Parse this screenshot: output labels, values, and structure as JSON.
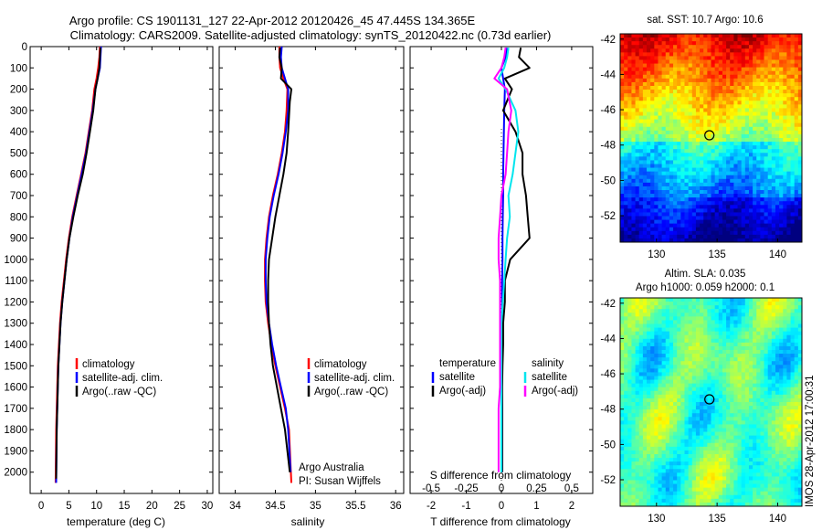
{
  "header": {
    "title_line1": "Argo profile: CS 1901131_127 22-Apr-2012 20120426_45 47.445S 134.365E",
    "title_line2": "Climatology: CARS2009. Satellite-adjusted climatology: synTS_20120422.nc (0.73d earlier)"
  },
  "colors": {
    "climatology": "#ff0000",
    "satellite": "#0000ff",
    "argo": "#000000",
    "sal_satellite": "#00e5ee",
    "sal_argo": "#ff00ff"
  },
  "chart_data": [
    {
      "type": "line",
      "id": "temperature",
      "xlabel": "temperature (deg C)",
      "ylabel": "",
      "xlim": [
        -2,
        31
      ],
      "ylim": [
        2100,
        0
      ],
      "xticks": [
        "0",
        "5",
        "10",
        "15",
        "20",
        "25",
        "30"
      ],
      "yticks": [
        "0",
        "100",
        "200",
        "300",
        "400",
        "500",
        "600",
        "700",
        "800",
        "900",
        "1000",
        "1100",
        "1200",
        "1300",
        "1400",
        "1500",
        "1600",
        "1700",
        "1800",
        "1900",
        "2000"
      ],
      "legend": [
        "climatology",
        "satellite-adj. clim.",
        "Argo(..raw -QC)"
      ],
      "series": [
        {
          "name": "climatology",
          "color": "#ff0000",
          "x": [
            10.6,
            10.5,
            10.3,
            10.0,
            9.6,
            9.2,
            8.6,
            8.0,
            7.2,
            6.4,
            5.6,
            5.0,
            4.5,
            4.1,
            3.7,
            3.4,
            3.2,
            3.0,
            2.9,
            2.8,
            2.7,
            2.6
          ],
          "y": [
            0,
            50,
            100,
            150,
            200,
            300,
            400,
            500,
            600,
            700,
            800,
            900,
            1000,
            1100,
            1200,
            1300,
            1400,
            1500,
            1600,
            1700,
            1800,
            2050
          ]
        },
        {
          "name": "satellite-adj. clim.",
          "color": "#0000ff",
          "x": [
            10.8,
            10.7,
            10.6,
            10.2,
            9.8,
            9.3,
            8.7,
            8.1,
            7.3,
            6.5,
            5.7,
            5.1,
            4.6,
            4.2,
            3.8,
            3.5,
            3.3,
            3.1,
            3.0,
            2.9,
            2.8,
            2.7
          ],
          "y": [
            0,
            50,
            100,
            150,
            200,
            300,
            400,
            500,
            600,
            700,
            800,
            900,
            1000,
            1100,
            1200,
            1300,
            1400,
            1500,
            1600,
            1700,
            1800,
            2050
          ]
        },
        {
          "name": "Argo(..raw -QC)",
          "color": "#000000",
          "x": [
            10.7,
            10.6,
            10.5,
            10.2,
            9.8,
            9.4,
            8.8,
            8.2,
            7.5,
            6.6,
            5.8,
            5.1,
            4.6,
            4.2,
            3.8,
            3.5,
            3.3,
            3.1,
            3.0,
            2.9,
            2.8,
            2.7
          ],
          "y": [
            5,
            50,
            100,
            150,
            200,
            300,
            400,
            500,
            600,
            700,
            800,
            900,
            1000,
            1100,
            1200,
            1300,
            1400,
            1500,
            1600,
            1700,
            1800,
            2030
          ]
        }
      ]
    },
    {
      "type": "line",
      "id": "salinity",
      "xlabel": "salinity",
      "ylabel": "",
      "xlim": [
        33.8,
        36.1
      ],
      "ylim": [
        2100,
        0
      ],
      "xticks": [
        "34",
        "34.5",
        "35",
        "35.5",
        "36"
      ],
      "legend": [
        "climatology",
        "satellite-adj. clim.",
        "Argo(..raw -QC)"
      ],
      "annotation": [
        "Argo Australia",
        "PI: Susan Wijffels"
      ],
      "series": [
        {
          "name": "climatology",
          "color": "#ff0000",
          "x": [
            34.55,
            34.55,
            34.56,
            34.6,
            34.65,
            34.64,
            34.62,
            34.58,
            34.53,
            34.47,
            34.42,
            34.39,
            34.37,
            34.37,
            34.38,
            34.41,
            34.45,
            34.5,
            34.56,
            34.62,
            34.67,
            34.7
          ],
          "y": [
            0,
            50,
            100,
            150,
            200,
            300,
            400,
            500,
            600,
            700,
            800,
            900,
            1000,
            1100,
            1200,
            1300,
            1400,
            1500,
            1600,
            1700,
            1800,
            2050
          ]
        },
        {
          "name": "satellite-adj. clim.",
          "color": "#0000ff",
          "x": [
            34.58,
            34.57,
            34.58,
            34.62,
            34.66,
            34.66,
            34.63,
            34.59,
            34.54,
            34.48,
            34.43,
            34.4,
            34.38,
            34.38,
            34.39,
            34.42,
            34.46,
            34.51,
            34.57,
            34.63,
            34.66,
            34.69
          ],
          "y": [
            0,
            50,
            100,
            150,
            200,
            300,
            400,
            500,
            600,
            700,
            800,
            900,
            1000,
            1100,
            1200,
            1300,
            1400,
            1500,
            1600,
            1700,
            1800,
            2000
          ]
        },
        {
          "name": "Argo(..raw -QC)",
          "color": "#000000",
          "x": [
            34.56,
            34.55,
            34.58,
            34.57,
            34.7,
            34.68,
            34.66,
            34.64,
            34.6,
            34.55,
            34.5,
            34.46,
            34.42,
            34.41,
            34.41,
            34.42,
            34.44,
            34.47,
            34.52,
            34.57,
            34.62,
            34.68
          ],
          "y": [
            5,
            50,
            100,
            150,
            200,
            260,
            400,
            500,
            600,
            700,
            800,
            900,
            1000,
            1100,
            1200,
            1300,
            1400,
            1500,
            1600,
            1700,
            1800,
            2000
          ]
        }
      ]
    },
    {
      "type": "line",
      "id": "differences",
      "xlabel": "T difference from climatology",
      "xlabel_top": "S difference from climatology",
      "xlim": [
        -2.6,
        2.6
      ],
      "s_xlim": [
        -0.65,
        0.65
      ],
      "ylim": [
        2100,
        0
      ],
      "xticks": [
        "-2",
        "-1",
        "0",
        "1",
        "2"
      ],
      "s_xticks": [
        "-0.5",
        "-0.25",
        "0",
        "0.25",
        "0.5"
      ],
      "legend_temperature": [
        "temperature",
        "satellite",
        "Argo(-adj)"
      ],
      "legend_salinity": [
        "salinity",
        "satellite",
        "Argo(-adj)"
      ],
      "series": [
        {
          "name": "T satellite",
          "color": "#0000ff",
          "units": "T",
          "x": [
            0.15,
            0.12,
            0.0,
            0.05,
            0.1,
            0.08,
            0.07,
            0.06,
            0.05,
            0.05,
            0.04,
            0.03,
            0.03,
            0.02,
            0.02,
            0.02,
            0.01,
            0.01,
            0.01,
            0.02,
            0.02
          ],
          "y": [
            5,
            50,
            100,
            150,
            200,
            300,
            400,
            500,
            600,
            700,
            800,
            900,
            1000,
            1100,
            1200,
            1300,
            1400,
            1500,
            1600,
            1700,
            2000
          ]
        },
        {
          "name": "T Argo(-adj)",
          "color": "#000000",
          "units": "T",
          "x": [
            0.55,
            0.5,
            0.8,
            0.1,
            0.3,
            0.05,
            0.4,
            0.6,
            0.6,
            0.7,
            0.75,
            0.8,
            0.25,
            0.1,
            0.1,
            0.05,
            0.05,
            0.03,
            0.02,
            0.02,
            0.02
          ],
          "y": [
            5,
            50,
            100,
            150,
            200,
            300,
            400,
            500,
            600,
            700,
            800,
            900,
            1000,
            1100,
            1200,
            1300,
            1400,
            1500,
            1600,
            1700,
            2000
          ]
        },
        {
          "name": "S satellite",
          "color": "#00e5ee",
          "units": "S",
          "x": [
            0.05,
            0.04,
            0.02,
            -0.02,
            0.03,
            0.1,
            0.12,
            0.1,
            0.08,
            0.05,
            0.06,
            0.04,
            0.03,
            0.02,
            0.01,
            0.0,
            0.0,
            0.0,
            0.0,
            0.0,
            0.0
          ],
          "y": [
            5,
            50,
            100,
            150,
            200,
            300,
            400,
            500,
            600,
            700,
            800,
            900,
            1000,
            1100,
            1200,
            1300,
            1400,
            1500,
            1600,
            1700,
            2000
          ]
        },
        {
          "name": "S Argo(-adj)",
          "color": "#ff00ff",
          "units": "S",
          "x": [
            0.03,
            0.02,
            0.0,
            -0.05,
            0.04,
            0.07,
            0.05,
            0.04,
            0.03,
            0.0,
            -0.01,
            -0.02,
            -0.02,
            -0.01,
            -0.01,
            -0.01,
            -0.01,
            -0.01,
            -0.01,
            -0.02,
            -0.02
          ],
          "y": [
            5,
            50,
            100,
            150,
            200,
            300,
            400,
            500,
            600,
            700,
            800,
            900,
            1000,
            1100,
            1200,
            1300,
            1400,
            1500,
            1600,
            1700,
            2000
          ]
        }
      ]
    },
    {
      "type": "heatmap",
      "id": "sst-map",
      "title": "sat. SST: 10.7  Argo: 10.6",
      "xticks": [
        "130",
        "135",
        "140"
      ],
      "yticks": [
        "-42",
        "-44",
        "-46",
        "-48",
        "-50",
        "-52"
      ],
      "xlim": [
        127,
        142
      ],
      "ylim": [
        -53.5,
        -41.7
      ],
      "marker": {
        "lon": 134.365,
        "lat": -47.445
      }
    },
    {
      "type": "heatmap",
      "id": "sla-map",
      "title_line1": "Altim. SLA: 0.035",
      "title_line2": "Argo h1000: 0.059 h2000: 0.1",
      "xticks": [
        "130",
        "135",
        "140"
      ],
      "yticks": [
        "-42",
        "-44",
        "-46",
        "-48",
        "-50",
        "-52"
      ],
      "xlim": [
        127,
        142
      ],
      "ylim": [
        -53.5,
        -41.7
      ],
      "marker": {
        "lon": 134.365,
        "lat": -47.445
      },
      "side_label": "IMOS 28-Apr-2012 17:00:31"
    }
  ]
}
